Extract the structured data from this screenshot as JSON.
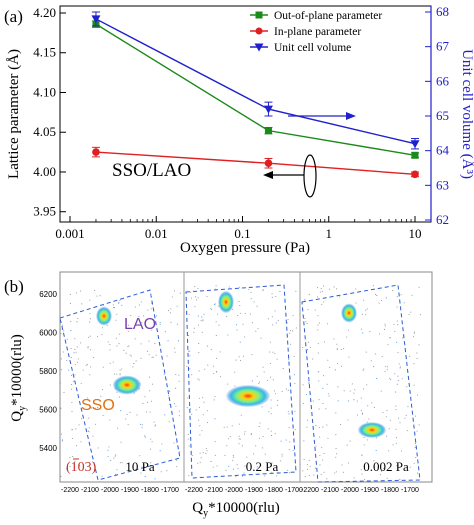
{
  "panel_a": {
    "label": "(a)",
    "annotation": "SSO/LAO",
    "chart_data": {
      "type": "line",
      "xscale": "log",
      "xlim": [
        0.001,
        10
      ],
      "xticks": [
        "0.001",
        "0.01",
        "0.1",
        "1",
        "10"
      ],
      "xlabel": "Oxygen pressure (Pa)",
      "ylabel_left": "Lattice parameter (Å)",
      "ylabel_right": "Unit cell volume (Å³)",
      "ylim_left": [
        3.98,
        4.2
      ],
      "ylim_right": [
        62,
        68
      ],
      "yticks_left": [
        "3.95",
        "4.00",
        "4.05",
        "4.10",
        "4.15",
        "4.20"
      ],
      "yticks_right": [
        "62",
        "63",
        "64",
        "65",
        "66",
        "67",
        "68"
      ],
      "legend_position": "top-right",
      "series": [
        {
          "name": "Out-of-plane parameter",
          "axis": "left",
          "color": "#1a8a1a",
          "marker": "square",
          "x": [
            0.002,
            0.2,
            10
          ],
          "y": [
            4.186,
            4.052,
            4.021
          ],
          "err": [
            0.004,
            0.004,
            0.003
          ]
        },
        {
          "name": "In-plane parameter",
          "axis": "left",
          "color": "#e02020",
          "marker": "circle",
          "x": [
            0.002,
            0.2,
            10
          ],
          "y": [
            4.025,
            4.011,
            3.997
          ],
          "err": [
            0.006,
            0.006,
            0.003
          ]
        },
        {
          "name": "Unit cell volume",
          "axis": "right",
          "color": "#2020cc",
          "marker": "triangle-down",
          "x": [
            0.002,
            0.2,
            10
          ],
          "y": [
            67.8,
            65.2,
            64.2
          ],
          "err": [
            0.2,
            0.2,
            0.15
          ]
        }
      ]
    }
  },
  "panel_b": {
    "label": "(b)",
    "ylabel_main": "Q",
    "ylabel_sub": "y",
    "ylabel_rest": "*10000(rlu)",
    "xlabel_main": "Q",
    "xlabel_sub": "y",
    "xlabel_rest": "*10000(rlu)",
    "yticks": [
      "6200",
      "6000",
      "5800",
      "5600",
      "5400"
    ],
    "xticks": [
      "-2200",
      "-2100",
      "-2000",
      "-1900",
      "-1800",
      "-1700"
    ],
    "lao_label": "LAO",
    "sso_label": "SSO",
    "reflection_label": "(103)",
    "reflection_bar_char": "1",
    "maps": [
      {
        "pressure": "10 Pa"
      },
      {
        "pressure": "0.2 Pa"
      },
      {
        "pressure": "0.002 Pa"
      }
    ]
  }
}
